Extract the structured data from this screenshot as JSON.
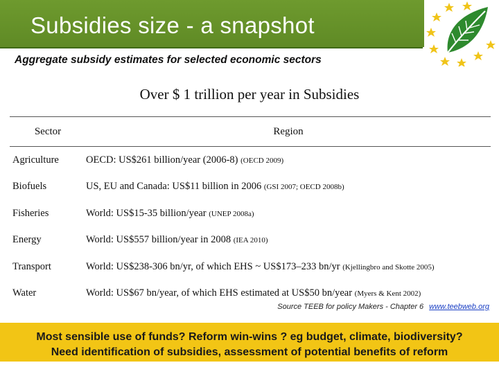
{
  "header": {
    "title": "Subsidies size -  a snapshot",
    "subtitle": "Aggregate subsidy estimates for selected economic sectors"
  },
  "headline": "Over $ 1 trillion per year in Subsidies",
  "table": {
    "columns": [
      "Sector",
      "Region"
    ],
    "rows": [
      {
        "sector": "Agriculture",
        "region": "OECD: US$261 billion/year (2006-8)",
        "cite": "(OECD 2009)"
      },
      {
        "sector": "Biofuels",
        "region": "US, EU and Canada: US$11 billion in 2006",
        "cite": "(GSI 2007; OECD 2008b)"
      },
      {
        "sector": "Fisheries",
        "region": "World: US$15-35 billion/year",
        "cite": "(UNEP 2008a)"
      },
      {
        "sector": "Energy",
        "region": "World: US$557 billion/year in 2008",
        "cite": "(IEA 2010)"
      },
      {
        "sector": "Transport",
        "region": "World: US$238-306 bn/yr, of which EHS ~ US$173–233 bn/yr",
        "cite": "(Kjellingbro and Skotte 2005)"
      },
      {
        "sector": "Water",
        "region": "World: US$67 bn/year, of which EHS estimated at US$50 bn/year",
        "cite": "(Myers & Kent 2002)"
      }
    ]
  },
  "source": {
    "text": "Source TEEB for policy Makers - Chapter 6",
    "link": "www.teebweb.org"
  },
  "bottom": {
    "line1": "Most sensible use of funds? Reform win-wins ? eg budget, climate, biodiversity?",
    "line2": "Need identification of subsidies, assessment of potential benefits of reform"
  },
  "colors": {
    "header_green": "#6e9a2e",
    "bottom_yellow": "#f2c515",
    "link_blue": "#1a3fc4"
  },
  "icons": {
    "logo": "leaf-with-stars-icon"
  }
}
